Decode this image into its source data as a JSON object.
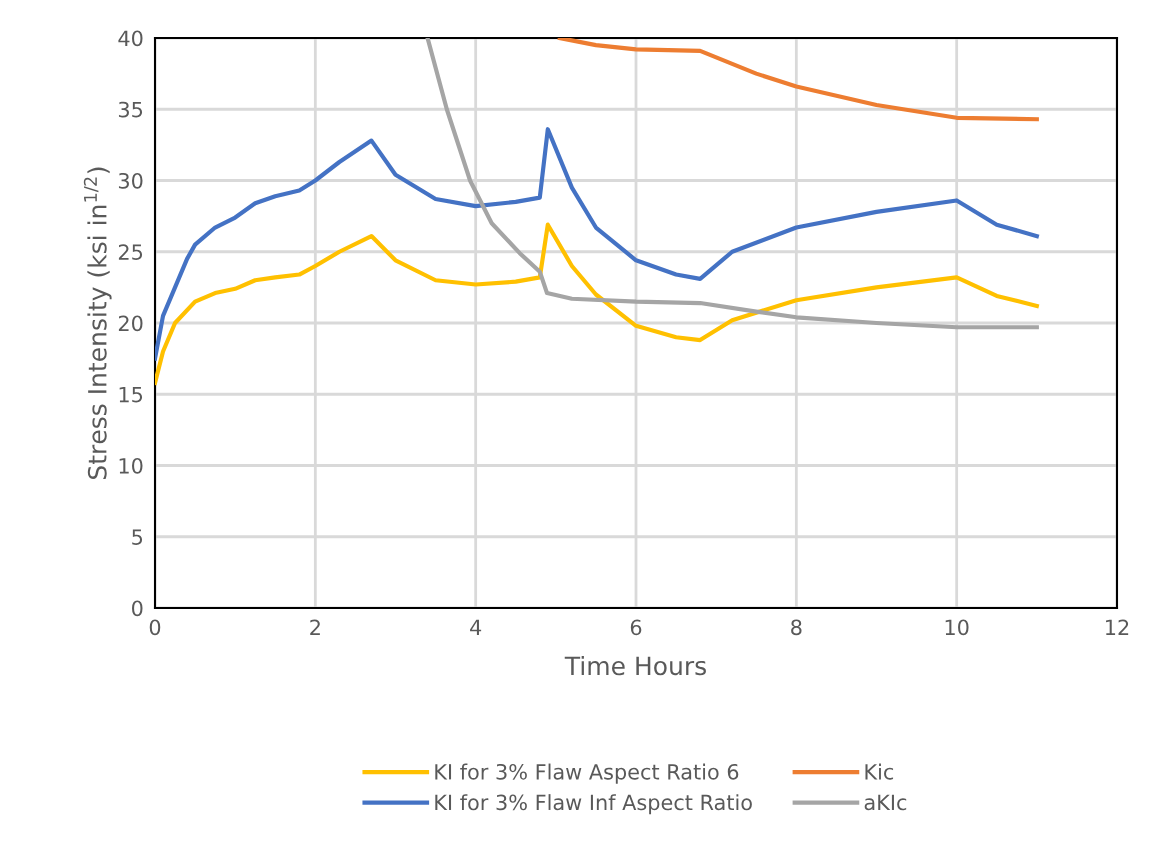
{
  "chart_data": {
    "type": "line",
    "xlabel": "Time Hours",
    "ylabel": "Stress Intensity (ksi in$^{1/2}$)",
    "xlim": [
      0,
      12
    ],
    "ylim": [
      0,
      40
    ],
    "xticks": [
      0,
      2,
      4,
      6,
      8,
      10,
      12
    ],
    "yticks": [
      0,
      5,
      10,
      15,
      20,
      25,
      30,
      35,
      40
    ],
    "grid": true,
    "legend": "bottom",
    "marker": "none",
    "line_style": "solid",
    "series": [
      {
        "name": "KI for 3% Flaw Aspect Ratio 6",
        "color": "#ffc000",
        "x": [
          0,
          0.1,
          0.25,
          0.5,
          0.75,
          1.0,
          1.25,
          1.5,
          1.8,
          2.0,
          2.3,
          2.7,
          3.0,
          3.5,
          4.0,
          4.5,
          4.8,
          4.9,
          5.2,
          5.5,
          6.0,
          6.5,
          6.8,
          7.2,
          8,
          9,
          10,
          10.5,
          11
        ],
        "values": [
          15.8,
          18,
          20,
          21.5,
          22.1,
          22.4,
          23,
          23.2,
          23.4,
          24,
          25,
          26.1,
          24.4,
          23,
          22.7,
          22.9,
          23.2,
          26.9,
          24,
          22,
          19.8,
          19,
          18.8,
          20.2,
          21.6,
          22.5,
          23.2,
          21.9,
          21.2
        ]
      },
      {
        "name": "KI for 3% Flaw Inf Aspect Ratio",
        "color": "#4472c4",
        "x": [
          0,
          0.1,
          0.25,
          0.4,
          0.5,
          0.75,
          1.0,
          1.25,
          1.5,
          1.8,
          2.0,
          2.3,
          2.7,
          3.0,
          3.5,
          4.0,
          4.5,
          4.8,
          4.9,
          5.2,
          5.5,
          6.0,
          6.5,
          6.8,
          7.2,
          8,
          9,
          10,
          10.5,
          11
        ],
        "values": [
          17.5,
          20.5,
          22.5,
          24.5,
          25.5,
          26.7,
          27.4,
          28.4,
          28.9,
          29.3,
          30,
          31.3,
          32.8,
          30.4,
          28.7,
          28.2,
          28.5,
          28.8,
          33.6,
          29.5,
          26.7,
          24.4,
          23.4,
          23.1,
          25,
          26.7,
          27.8,
          28.6,
          26.9,
          26.1
        ]
      },
      {
        "name": "Kic",
        "color": "#ed7d31",
        "x": [
          5.05,
          5.5,
          6,
          6.8,
          7.5,
          8,
          9,
          10,
          11
        ],
        "values": [
          40,
          39.5,
          39.2,
          39.1,
          37.5,
          36.6,
          35.3,
          34.4,
          34.3
        ]
      },
      {
        "name": "aKIc",
        "color": "#a5a5a5",
        "x": [
          3.4,
          3.64,
          3.93,
          4.2,
          4.55,
          4.8,
          4.89,
          5.2,
          6,
          6.8,
          7.5,
          8,
          9,
          10,
          11
        ],
        "values": [
          40,
          35,
          30,
          27,
          24.9,
          23.6,
          22.1,
          21.7,
          21.5,
          21.4,
          20.8,
          20.4,
          20,
          19.7,
          19.7
        ]
      }
    ]
  }
}
